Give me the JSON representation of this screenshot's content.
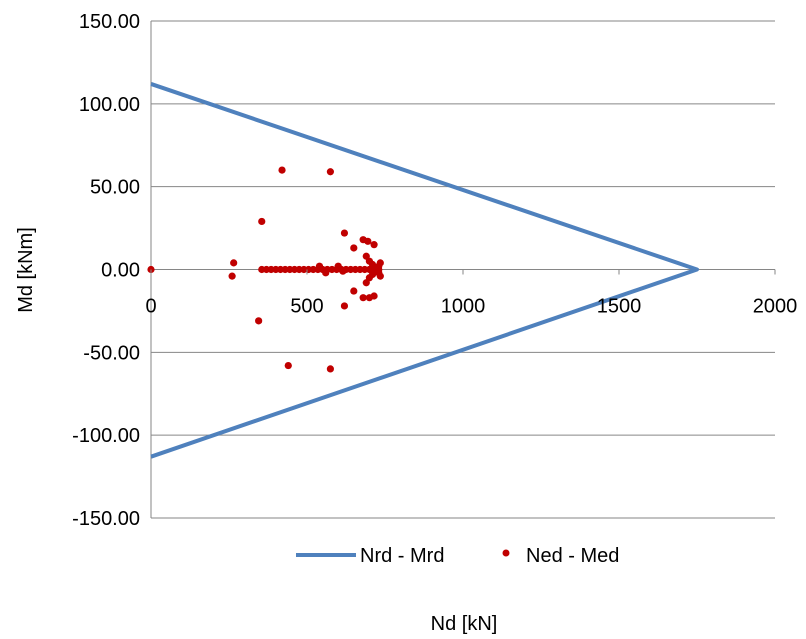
{
  "chart_data": {
    "type": "scatter",
    "xlabel": "Nd [kN]",
    "ylabel": "Md [kNm]",
    "xlim": [
      0,
      2000
    ],
    "ylim": [
      -150,
      150
    ],
    "x_ticks": [
      "0",
      "500",
      "1000",
      "1500",
      "2000"
    ],
    "y_ticks": [
      "150.00",
      "100.00",
      "50.00",
      "0.00",
      "-50.00",
      "-100.00",
      "-150.00"
    ],
    "grid": "horizontal",
    "legend_position": "bottom",
    "series": [
      {
        "name": "Nrd - Mrd",
        "kind": "line",
        "color": "#4f81bd",
        "points": [
          [
            0,
            112
          ],
          [
            1750,
            0
          ],
          [
            0,
            -113
          ]
        ]
      },
      {
        "name": "Ned - Med",
        "kind": "scatter",
        "color": "#c00000",
        "points": [
          [
            0,
            0
          ],
          [
            420,
            60
          ],
          [
            575,
            59
          ],
          [
            355,
            29
          ],
          [
            620,
            22
          ],
          [
            265,
            4
          ],
          [
            260,
            -4
          ],
          [
            345,
            -31
          ],
          [
            440,
            -58
          ],
          [
            575,
            -60
          ],
          [
            620,
            -22
          ],
          [
            650,
            13
          ],
          [
            650,
            -13
          ],
          [
            680,
            18
          ],
          [
            695,
            17
          ],
          [
            715,
            15
          ],
          [
            680,
            -17
          ],
          [
            700,
            -17
          ],
          [
            715,
            -16
          ],
          [
            690,
            8
          ],
          [
            700,
            5
          ],
          [
            710,
            3
          ],
          [
            720,
            1
          ],
          [
            730,
            2
          ],
          [
            735,
            4
          ],
          [
            690,
            -8
          ],
          [
            700,
            -5
          ],
          [
            710,
            -3
          ],
          [
            720,
            -1
          ],
          [
            730,
            -2
          ],
          [
            735,
            -4
          ],
          [
            355,
            0
          ],
          [
            370,
            0
          ],
          [
            385,
            0
          ],
          [
            400,
            0
          ],
          [
            415,
            0
          ],
          [
            430,
            0
          ],
          [
            445,
            0
          ],
          [
            460,
            0
          ],
          [
            475,
            0
          ],
          [
            490,
            0
          ],
          [
            505,
            0
          ],
          [
            520,
            0
          ],
          [
            535,
            0
          ],
          [
            550,
            0
          ],
          [
            565,
            0
          ],
          [
            580,
            0
          ],
          [
            595,
            0
          ],
          [
            610,
            0
          ],
          [
            625,
            0
          ],
          [
            640,
            0
          ],
          [
            655,
            0
          ],
          [
            670,
            0
          ],
          [
            685,
            0
          ],
          [
            700,
            0
          ],
          [
            715,
            0
          ],
          [
            730,
            0
          ],
          [
            540,
            2
          ],
          [
            560,
            -2
          ],
          [
            600,
            2
          ],
          [
            615,
            -1
          ]
        ]
      }
    ]
  }
}
